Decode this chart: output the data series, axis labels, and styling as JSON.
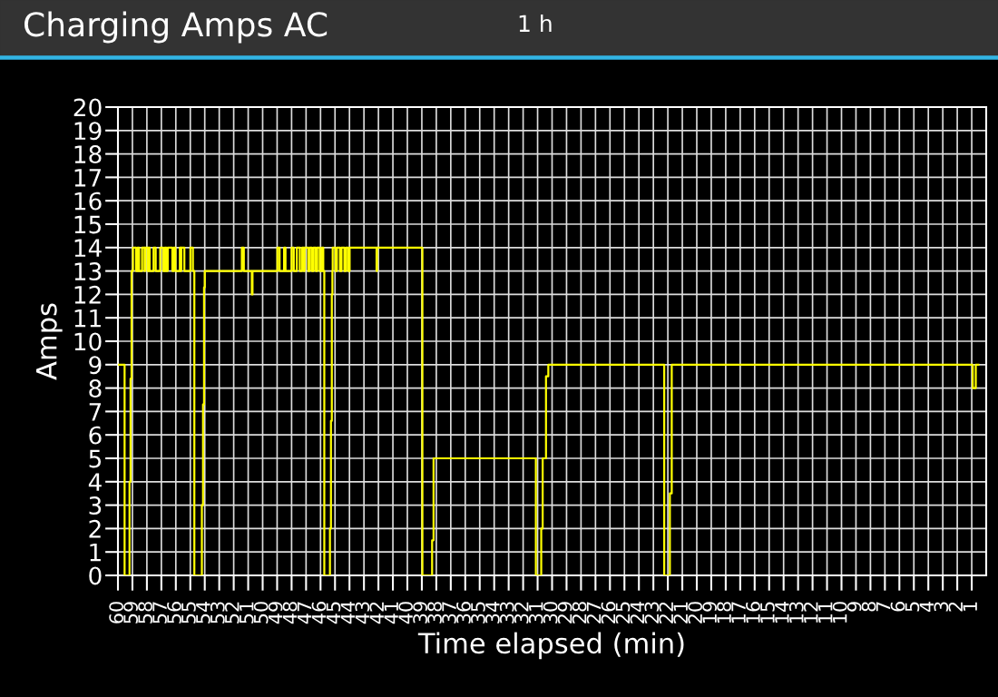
{
  "chart_data": {
    "type": "step",
    "title": "Charging Amps AC",
    "subtitle": "1 h",
    "xlabel": "Time elapsed (min)",
    "ylabel": "Amps",
    "xlim": [
      60,
      0
    ],
    "xticks": [
      60,
      59,
      58,
      57,
      56,
      55,
      54,
      53,
      52,
      51,
      50,
      49,
      48,
      47,
      46,
      45,
      44,
      43,
      42,
      41,
      40,
      39,
      38,
      37,
      36,
      35,
      34,
      33,
      32,
      31,
      30,
      29,
      28,
      27,
      26,
      25,
      24,
      23,
      22,
      21,
      20,
      19,
      18,
      17,
      16,
      15,
      14,
      13,
      12,
      11,
      10,
      9,
      8,
      7,
      6,
      5,
      4,
      3,
      2,
      1
    ],
    "ylim": [
      0,
      20
    ],
    "yticks": [
      0,
      1,
      2,
      3,
      4,
      5,
      6,
      7,
      8,
      9,
      10,
      11,
      12,
      13,
      14,
      15,
      16,
      17,
      18,
      19,
      20
    ],
    "grid": true,
    "marker": "none",
    "line_style": "solid",
    "series": [
      {
        "color": "#ffff00",
        "x": [
          60.0,
          59.54,
          59.2,
          59.13,
          59.06,
          58.96,
          58.75,
          58.64,
          58.54,
          58.33,
          58.16,
          58.12,
          57.95,
          57.91,
          57.81,
          57.54,
          57.39,
          57.08,
          56.87,
          56.76,
          56.66,
          56.56,
          56.24,
          56.14,
          56.03,
          55.72,
          55.66,
          55.62,
          55.41,
          54.99,
          54.82,
          54.72,
          54.2,
          54.12,
          54.05,
          54.0,
          51.44,
          51.3,
          50.75,
          50.7,
          48.98,
          48.83,
          48.52,
          48.42,
          48.0,
          47.85,
          47.64,
          47.43,
          47.27,
          47.16,
          47.1,
          46.85,
          46.75,
          46.6,
          46.48,
          46.33,
          46.23,
          46.06,
          45.91,
          45.81,
          45.74,
          45.35,
          45.28,
          45.22,
          45.18,
          45.16,
          44.97,
          44.87,
          44.66,
          44.55,
          44.35,
          44.24,
          44.09,
          43.99,
          42.13,
          42.09,
          38.96,
          38.29,
          38.19,
          31.12,
          30.75,
          30.65,
          30.42,
          30.26,
          22.25,
          21.86,
          21.73,
          0.93,
          0.72,
          0.54
        ],
        "values": [
          9,
          0,
          4,
          8.4,
          13,
          14,
          13,
          14,
          13,
          14,
          13,
          14,
          13,
          14,
          13,
          14,
          13,
          14,
          13,
          14,
          13,
          14,
          13,
          14,
          13,
          14,
          13,
          14,
          13,
          14,
          13,
          0,
          3,
          7.3,
          12.3,
          13,
          14,
          13,
          12,
          13,
          14,
          13,
          14,
          13,
          14,
          13,
          14,
          13,
          14,
          13,
          14,
          13,
          14,
          13,
          14,
          13,
          14,
          13,
          14,
          13,
          0,
          2,
          6.6,
          12,
          13,
          14,
          13,
          14,
          13,
          14,
          13,
          14,
          13,
          14,
          13,
          14,
          0,
          1.5,
          5,
          0,
          2,
          5,
          8.5,
          9,
          0,
          3.5,
          9,
          8,
          9,
          9
        ]
      }
    ]
  }
}
